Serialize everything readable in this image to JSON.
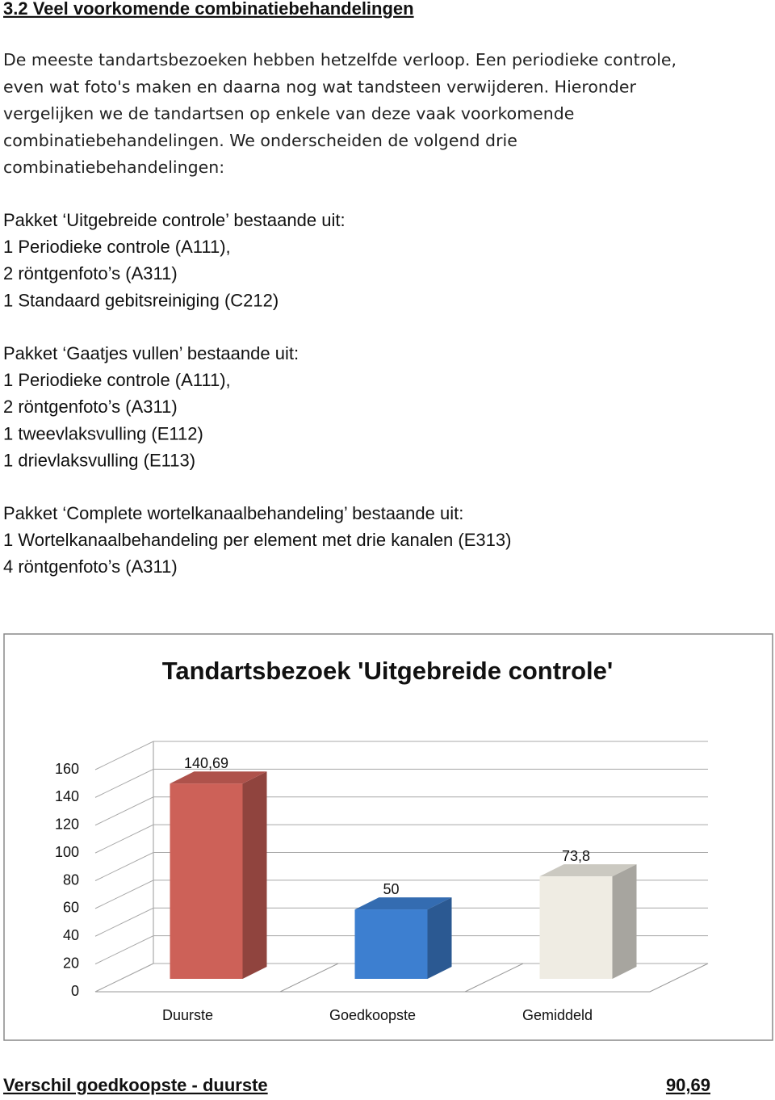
{
  "heading": "3.2 Veel voorkomende combinatiebehandelingen",
  "intro": [
    "De meeste tandartsbezoeken hebben hetzelfde verloop. Een periodieke controle,",
    "even wat foto's maken en daarna nog wat tandsteen verwijderen. Hieronder",
    "vergelijken we de tandartsen op enkele van deze vaak voorkomende",
    "combinatiebehandelingen. We onderscheiden de volgend drie",
    "combinatiebehandelingen:"
  ],
  "packages": [
    {
      "title": "Pakket ‘Uitgebreide controle’ bestaande uit:",
      "items": [
        "1 Periodieke controle (A111),",
        "2 röntgenfoto’s (A311)",
        "1 Standaard gebitsreiniging (C212)"
      ]
    },
    {
      "title": "Pakket ‘Gaatjes vullen’ bestaande uit:",
      "items": [
        "1 Periodieke controle (A111),",
        "2 röntgenfoto’s (A311)",
        "1 tweevlaksvulling (E112)",
        "1 drievlaksvulling (E113)"
      ]
    },
    {
      "title": "Pakket ‘Complete wortelkanaalbehandeling’ bestaande uit:",
      "items": [
        "1 Wortelkanaalbehandeling per element met drie kanalen (E313)",
        "4 röntgenfoto’s (A311)"
      ]
    }
  ],
  "chart_data": {
    "type": "bar3d",
    "title": "Tandartsbezoek 'Uitgebreide controle'",
    "categories": [
      "Duurste",
      "Goedkoopste",
      "Gemiddeld"
    ],
    "values": [
      140.69,
      50,
      73.8
    ],
    "value_labels": [
      "140,69",
      "50",
      "73,8"
    ],
    "colors": [
      "#cd6158",
      "#3d7fd0",
      "#efece3"
    ],
    "ylim": [
      0,
      160
    ],
    "yticks": [
      0,
      20,
      40,
      60,
      80,
      100,
      120,
      140,
      160
    ],
    "grid": true
  },
  "footer": {
    "label": "Verschil goedkoopste - duurste",
    "value": "90,69"
  }
}
